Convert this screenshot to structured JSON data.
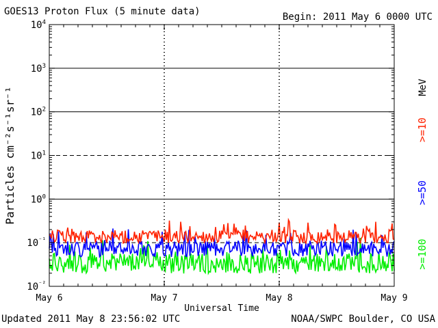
{
  "header": {
    "title": "GOES13 Proton Flux (5 minute data)",
    "begin": "Begin: 2011 May 6 0000 UTC"
  },
  "footer": {
    "updated": "Updated 2011 May  8 23:56:02 UTC",
    "credit": "NOAA/SWPC Boulder, CO USA"
  },
  "chart_data": {
    "type": "line",
    "ylabel": "Particles cm⁻²s⁻¹sr⁻¹",
    "xlabel": "Universal Time",
    "x_ticks": [
      "May 6",
      "May 7",
      "May 8",
      "May 9"
    ],
    "y_scale": "log",
    "ylim": [
      0.01,
      10000
    ],
    "y_ticks": [
      {
        "base": "10",
        "exp": "⁻²"
      },
      {
        "base": "10",
        "exp": "⁻¹"
      },
      {
        "base": "10",
        "exp": "0"
      },
      {
        "base": "10",
        "exp": "1"
      },
      {
        "base": "10",
        "exp": "2"
      },
      {
        "base": "10",
        "exp": "3"
      },
      {
        "base": "10",
        "exp": "4"
      }
    ],
    "reference_lines": [
      {
        "value": 1000,
        "style": "solid"
      },
      {
        "value": 100,
        "style": "solid"
      },
      {
        "value": 10,
        "style": "dashed"
      },
      {
        "value": 1,
        "style": "solid"
      },
      {
        "value": 0.1,
        "style": "dashed"
      }
    ],
    "unit_label": "MeV",
    "series": [
      {
        "name": ">=10",
        "color": "#ff2200",
        "typical": 0.14,
        "spread": 0.16
      },
      {
        "name": ">=50",
        "color": "#0000ff",
        "typical": 0.075,
        "spread": 0.2
      },
      {
        "name": ">=100",
        "color": "#00ee00",
        "typical": 0.035,
        "spread": 0.25
      }
    ]
  },
  "colors": {
    "axis": "#000000",
    "background": "#ffffff"
  }
}
